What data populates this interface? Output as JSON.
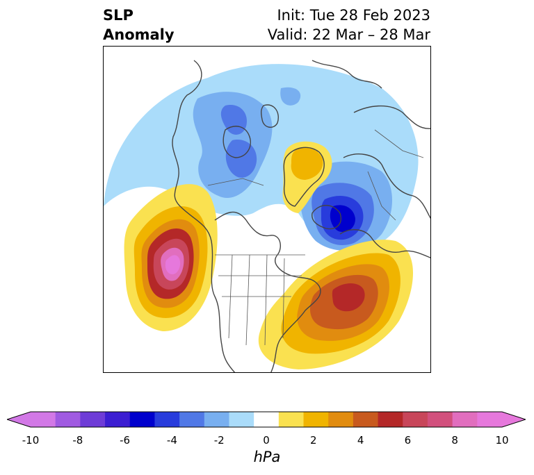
{
  "title": {
    "variable": "SLP",
    "variable_sub": "Anomaly",
    "init": "Init: Tue 28 Feb 2023",
    "valid": "Valid: 22 Mar – 28 Mar"
  },
  "colorbar": {
    "unit": "hPa",
    "ticks": [
      "-10",
      "-8",
      "-6",
      "-4",
      "-2",
      "0",
      "2",
      "4",
      "6",
      "8",
      "10"
    ],
    "levels": [
      -10,
      -9,
      -8,
      -7,
      -6,
      -5,
      -4,
      -3,
      -2,
      -1,
      1,
      2,
      3,
      4,
      5,
      6,
      7,
      8,
      9,
      10
    ],
    "colors": [
      "#d278e6",
      "#a05ae1",
      "#6e3cd7",
      "#3c1ed2",
      "#0000cd",
      "#283cdc",
      "#5078e6",
      "#78aff0",
      "#aadcfa",
      "#ffffff",
      "#fae150",
      "#f0b400",
      "#e18c0f",
      "#c85a1e",
      "#b42828",
      "#c8465a",
      "#d2507d",
      "#e16ebe",
      "#e678dc"
    ],
    "extend": "both",
    "under_color": "#d278e6",
    "over_color": "#e678dc"
  },
  "map": {
    "projection": "north polar stereographic",
    "features": [
      "coastlines",
      "country borders",
      "US state borders"
    ]
  }
}
